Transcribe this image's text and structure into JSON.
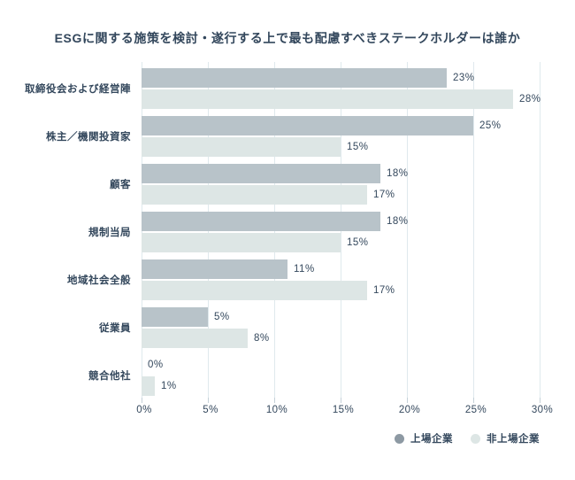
{
  "title": "ESGに関する施策を検討・遂行する上で最も配慮すべきステークホルダーは誰か",
  "colors": {
    "text": "#33475c",
    "bar_listed": "#b8c3c9",
    "bar_unlisted": "#dde6e5",
    "legend_dot_listed": "#8d99a3",
    "legend_dot_unlisted": "#dde6e5",
    "gridline": "#dfe9ed",
    "tick": "#c5d1d8",
    "background": "#ffffff"
  },
  "chart_data": {
    "type": "bar",
    "orientation": "horizontal",
    "title": "ESGに関する施策を検討・遂行する上で最も配慮すべきステークホルダーは誰か",
    "categories": [
      "取締役会および経営陣",
      "株主／機関投資家",
      "顧客",
      "規制当局",
      "地域社会全般",
      "従業員",
      "競合他社"
    ],
    "series": [
      {
        "name": "上場企業",
        "values": [
          23,
          25,
          18,
          18,
          11,
          5,
          0
        ],
        "labels": [
          "23%",
          "25%",
          "18%",
          "18%",
          "11%",
          "5%",
          "0%"
        ]
      },
      {
        "name": "非上場企業",
        "values": [
          28,
          15,
          17,
          15,
          17,
          8,
          1
        ],
        "labels": [
          "28%",
          "15%",
          "17%",
          "15%",
          "17%",
          "8%",
          "1%"
        ]
      }
    ],
    "xlabel": "",
    "ylabel": "",
    "xlim": [
      0,
      30
    ],
    "x_tick_values": [
      0,
      5,
      10,
      15,
      20,
      25,
      30
    ],
    "x_tick_labels": [
      "0%",
      "5%",
      "10%",
      "15%",
      "20%",
      "25%",
      "30%"
    ],
    "grid": true,
    "legend_position": "bottom-right"
  }
}
